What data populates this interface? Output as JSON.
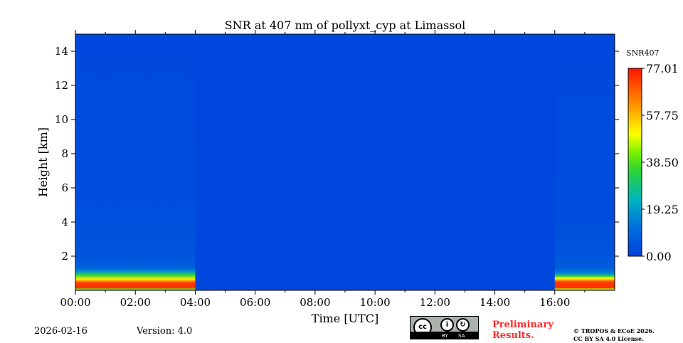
{
  "chart_data": {
    "type": "heatmap",
    "title": "SNR at 407 nm of pollyxt_cyp at Limassol",
    "xlabel": "Time [UTC]",
    "ylabel": "Height [km]",
    "xlim_hours": [
      0,
      18
    ],
    "ylim": [
      0,
      15
    ],
    "xticks": [
      {
        "v": 0,
        "label": "00:00"
      },
      {
        "v": 2,
        "label": "02:00"
      },
      {
        "v": 4,
        "label": "04:00"
      },
      {
        "v": 6,
        "label": "06:00"
      },
      {
        "v": 8,
        "label": "08:00"
      },
      {
        "v": 10,
        "label": "10:00"
      },
      {
        "v": 12,
        "label": "12:00"
      },
      {
        "v": 14,
        "label": "14:00"
      },
      {
        "v": 16,
        "label": "16:00"
      }
    ],
    "yticks": [
      2,
      4,
      6,
      8,
      10,
      12,
      14
    ],
    "background_value": 2,
    "segments": [
      {
        "t_start": 0,
        "t_end": 4.0,
        "profile": [
          {
            "h": 0,
            "v": 30
          },
          {
            "h": 0.08,
            "v": 40
          },
          {
            "h": 0.15,
            "v": 74
          },
          {
            "h": 0.45,
            "v": 72
          },
          {
            "h": 0.65,
            "v": 52
          },
          {
            "h": 0.9,
            "v": 35
          },
          {
            "h": 1.1,
            "v": 18
          },
          {
            "h": 1.3,
            "v": 8
          },
          {
            "h": 2.0,
            "v": 5
          },
          {
            "h": 4.0,
            "v": 3.5
          },
          {
            "h": 15,
            "v": 2
          }
        ]
      },
      {
        "t_start": 16.0,
        "t_end": 18,
        "profile": [
          {
            "h": 0,
            "v": 30
          },
          {
            "h": 0.08,
            "v": 45
          },
          {
            "h": 0.15,
            "v": 74
          },
          {
            "h": 0.5,
            "v": 72
          },
          {
            "h": 0.7,
            "v": 50
          },
          {
            "h": 0.85,
            "v": 32
          },
          {
            "h": 1.0,
            "v": 15
          },
          {
            "h": 1.3,
            "v": 7
          },
          {
            "h": 2.5,
            "v": 4.5
          },
          {
            "h": 4.5,
            "v": 3
          },
          {
            "h": 15,
            "v": 2
          }
        ]
      }
    ],
    "colorbar": {
      "label": "SNR407",
      "min": 0.0,
      "max": 77.01,
      "ticks": [
        "0.00",
        "19.25",
        "38.50",
        "57.75",
        "77.01"
      ]
    }
  },
  "footer": {
    "date": "2026-02-16",
    "version": "Version: 4.0",
    "preliminary": "Preliminary\nResults.",
    "preliminary_line1": "Preliminary",
    "preliminary_line2": "Results.",
    "copyright_line1": "© TROPOS & ECoE 2026.",
    "copyright_line2": "CC BY SA 4.0 License.",
    "license_badge": {
      "by": "BY",
      "sa": "SA"
    }
  },
  "colors": {
    "warning": "#ff2a2a"
  }
}
